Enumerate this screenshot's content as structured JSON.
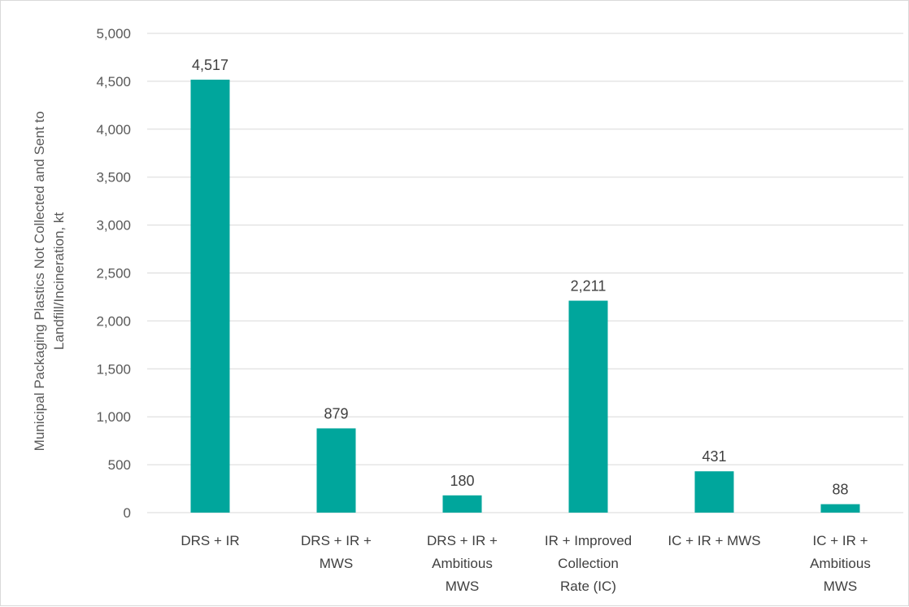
{
  "chart_data": {
    "type": "bar",
    "categories": [
      [
        "DRS + IR"
      ],
      [
        "DRS + IR +",
        "MWS"
      ],
      [
        "DRS + IR +",
        "Ambitious",
        "MWS"
      ],
      [
        "IR + Improved",
        "Collection",
        "Rate (IC)"
      ],
      [
        "IC + IR + MWS"
      ],
      [
        "IC + IR +",
        "Ambitious",
        "MWS"
      ]
    ],
    "values": [
      4517,
      879,
      180,
      2211,
      431,
      88
    ],
    "data_labels": [
      "4,517",
      "879",
      "180",
      "2,211",
      "431",
      "88"
    ],
    "ylabel": [
      "Municipal Packaging Plastics Not Collected and Sent to",
      "Landfill/Incineration, kt"
    ],
    "ylim": [
      0,
      5000
    ],
    "yticks": [
      0,
      500,
      1000,
      1500,
      2000,
      2500,
      3000,
      3500,
      4000,
      4500,
      5000
    ],
    "ytick_labels": [
      "0",
      "500",
      "1,000",
      "1,500",
      "2,000",
      "2,500",
      "3,000",
      "3,500",
      "4,000",
      "4,500",
      "5,000"
    ],
    "grid": true,
    "legend": "none",
    "bar_color": "#00A69C",
    "grid_color": "#d9d9d9"
  }
}
